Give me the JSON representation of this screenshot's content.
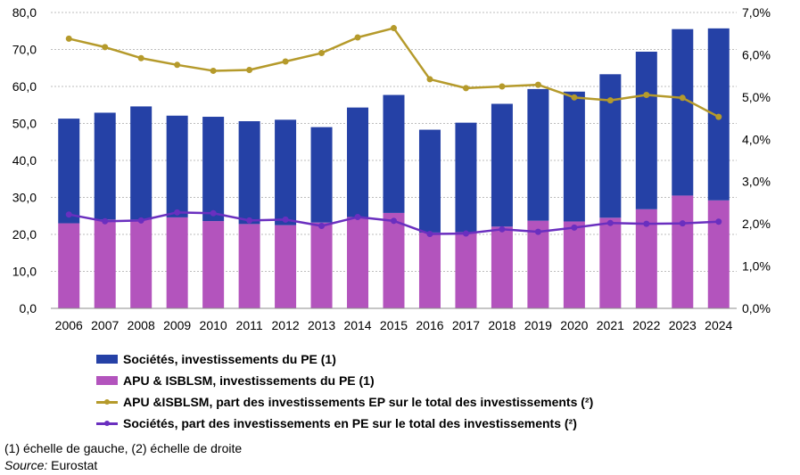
{
  "chart_data": {
    "type": "bar",
    "categories": [
      "2006",
      "2007",
      "2008",
      "2009",
      "2010",
      "2011",
      "2012",
      "2013",
      "2014",
      "2015",
      "2016",
      "2017",
      "2018",
      "2019",
      "2020",
      "2021",
      "2022",
      "2023",
      "2024"
    ],
    "series": [
      {
        "name": "Sociétés, investissements du PE (1)",
        "kind": "stacked-bar",
        "axis": "left",
        "color": "#2541a6",
        "values": [
          28.3,
          28.9,
          30.6,
          27.5,
          28.2,
          27.8,
          28.5,
          25.8,
          29.6,
          31.9,
          27.8,
          29.6,
          33.2,
          35.6,
          35.1,
          38.8,
          42.6,
          45.0,
          46.5
        ]
      },
      {
        "name": "APU & ISBLSM, investissements du PE (1)",
        "kind": "stacked-bar",
        "axis": "left",
        "color": "#b354bd",
        "values": [
          23.0,
          24.0,
          24.0,
          24.6,
          23.6,
          22.8,
          22.5,
          23.2,
          24.7,
          25.8,
          20.5,
          20.6,
          22.1,
          23.7,
          23.5,
          24.5,
          26.8,
          30.5,
          29.2
        ]
      },
      {
        "name": "APU &ISBLSM, part des investissements EP sur le total des investissements (²)",
        "kind": "line",
        "axis": "right",
        "color": "#b59a2b",
        "values": [
          6.38,
          6.18,
          5.92,
          5.76,
          5.62,
          5.64,
          5.84,
          6.04,
          6.41,
          6.63,
          5.42,
          5.21,
          5.25,
          5.29,
          4.99,
          4.92,
          5.05,
          4.98,
          4.53
        ]
      },
      {
        "name": "Sociétés, part des investissements en PE sur le total des investissements (²)",
        "kind": "line",
        "axis": "right",
        "color": "#6a2fbf",
        "values": [
          2.22,
          2.06,
          2.08,
          2.27,
          2.25,
          2.08,
          2.1,
          1.95,
          2.16,
          2.07,
          1.76,
          1.77,
          1.87,
          1.81,
          1.91,
          2.02,
          2.0,
          2.01,
          2.05
        ]
      }
    ],
    "left_axis": {
      "ylim": [
        0,
        80
      ],
      "ticks": [
        "0,0",
        "10,0",
        "20,0",
        "30,0",
        "40,0",
        "50,0",
        "60,0",
        "70,0",
        "80,0"
      ]
    },
    "right_axis": {
      "ylim": [
        0,
        7
      ],
      "ticks": [
        "0,0%",
        "1,0%",
        "2,0%",
        "3,0%",
        "4,0%",
        "5,0%",
        "6,0%",
        "7,0%"
      ]
    },
    "grid": "horizontal dashed",
    "legend_placement": "bottom-left"
  },
  "footnotes": {
    "scales": "(1) échelle de gauche, (2) échelle de droite",
    "source_label": "Source:",
    "source_value": " Eurostat"
  }
}
